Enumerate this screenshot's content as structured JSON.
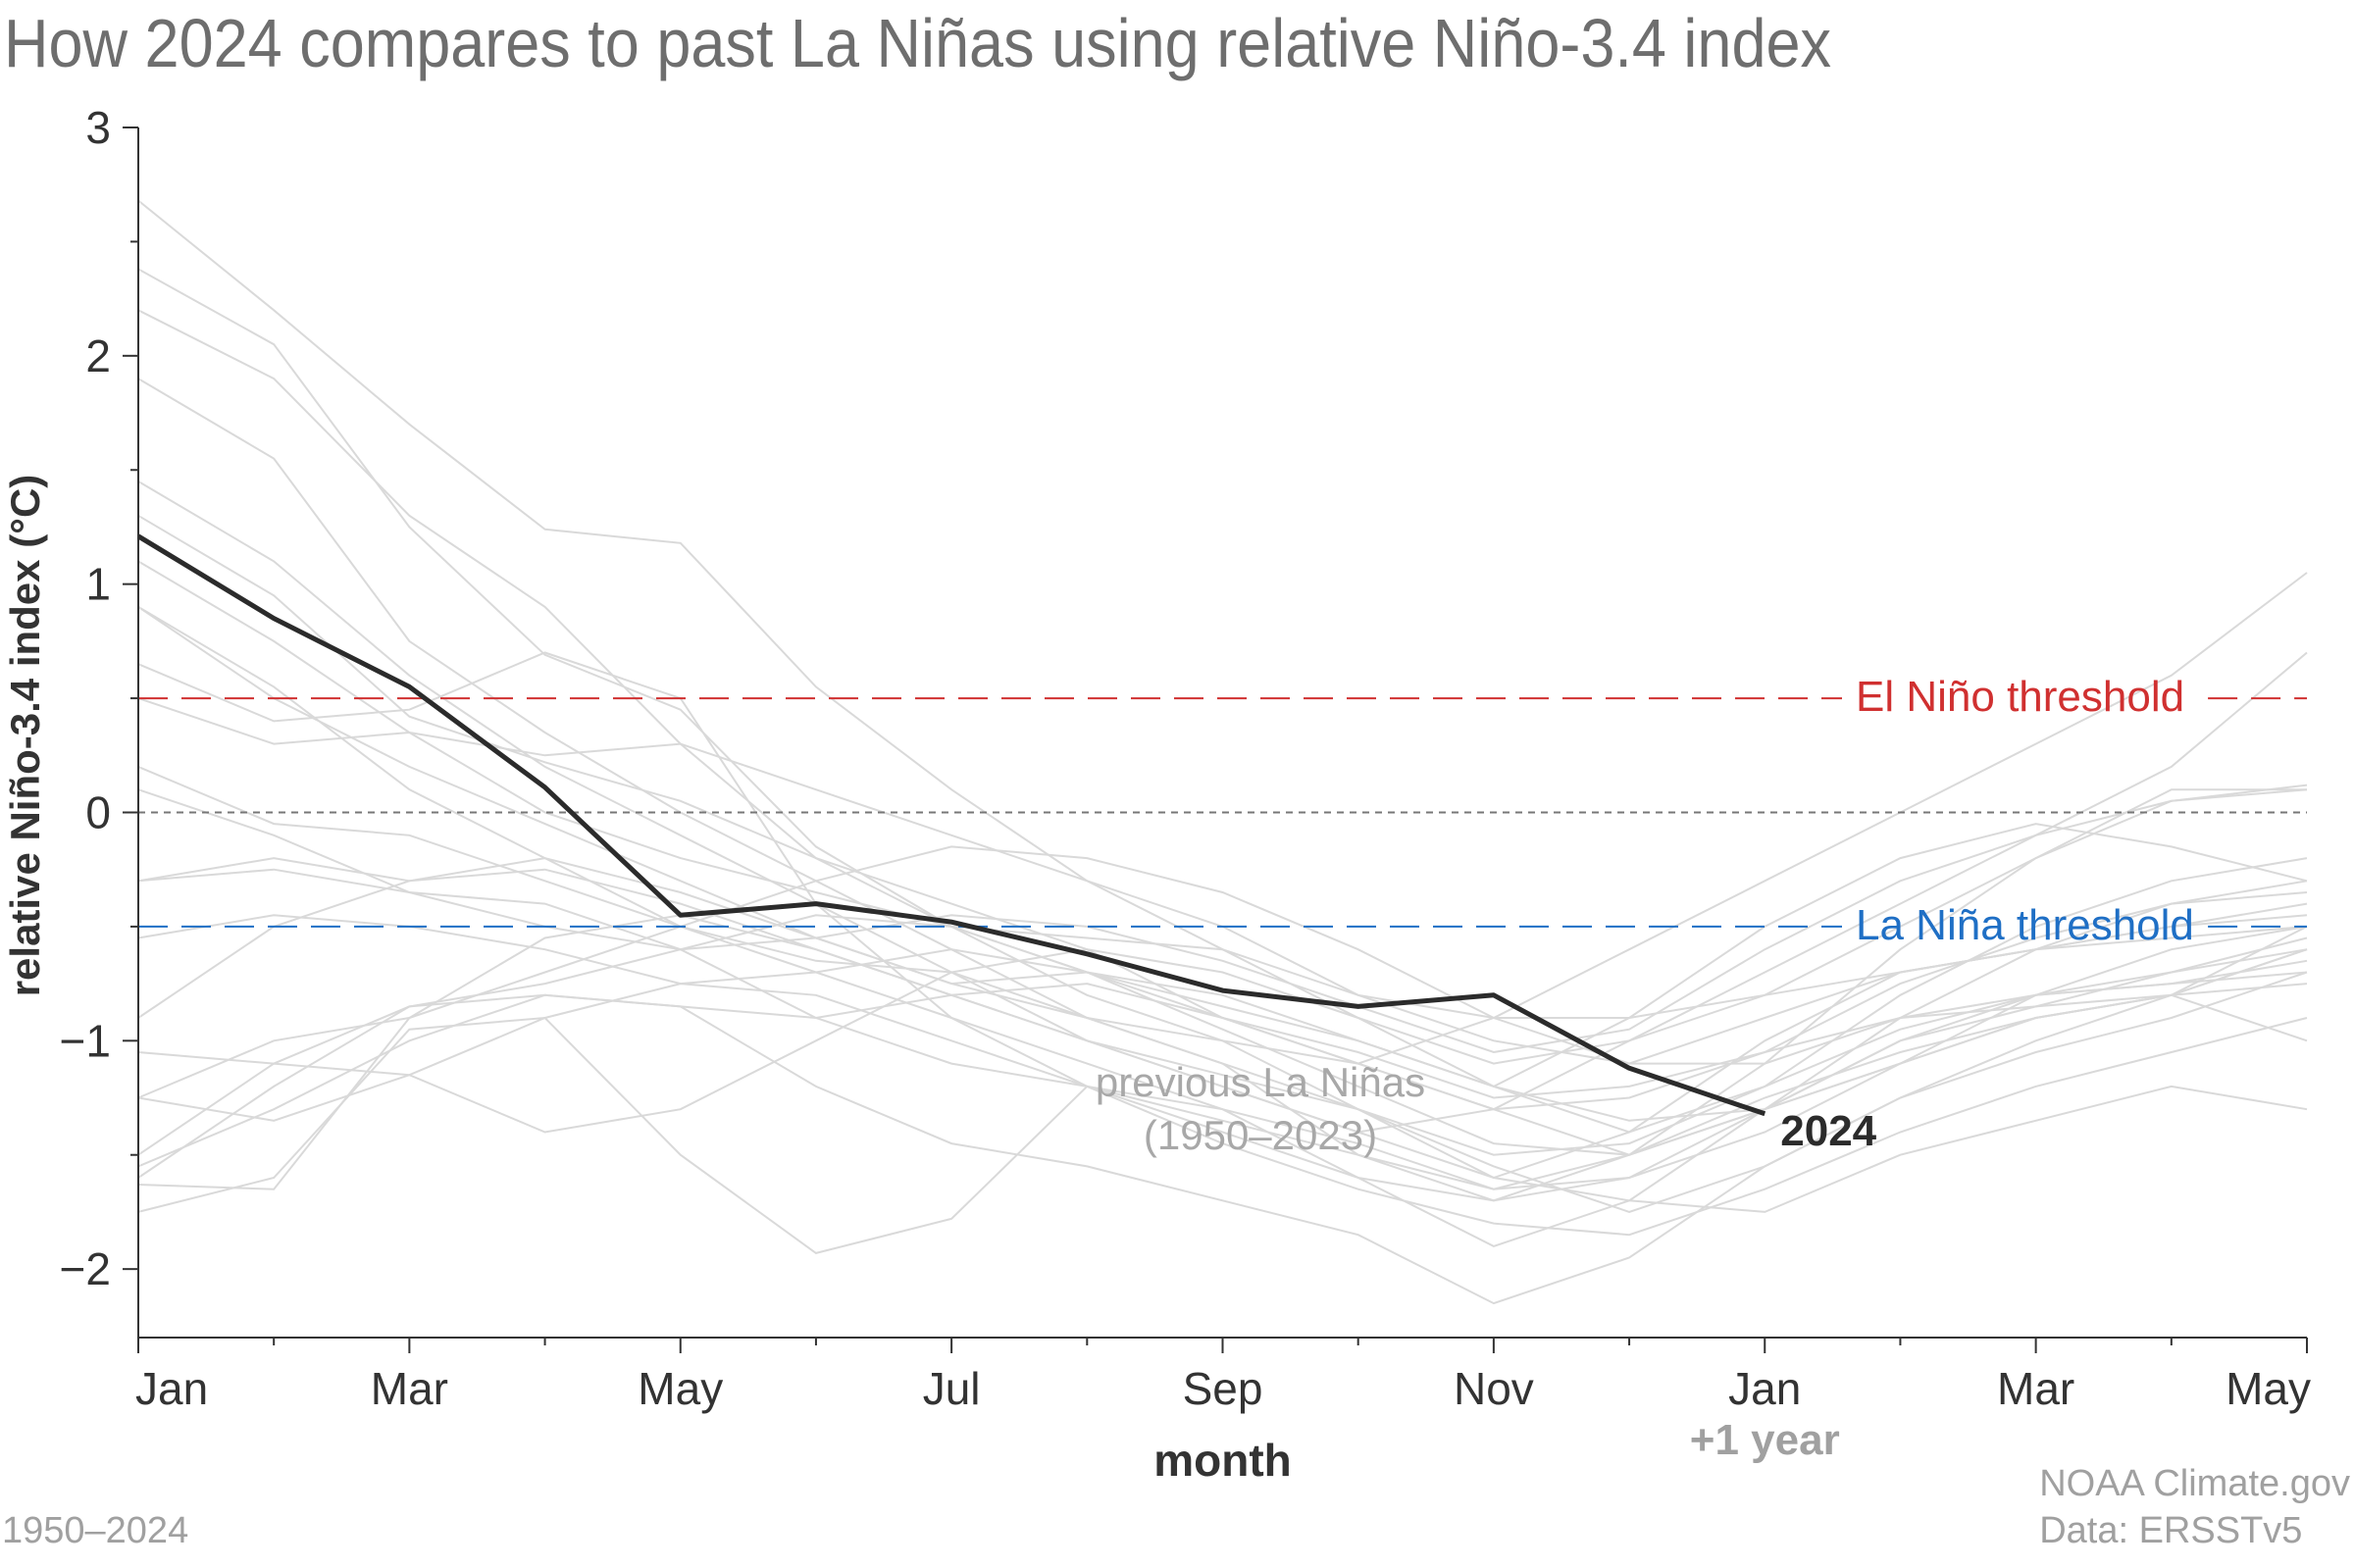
{
  "chart_data": {
    "type": "line",
    "title": "How 2024 compares to past La Niñas using relative Niño-3.4 index",
    "xlabel": "month",
    "ylabel": "relative Niño-3.4 index (°C)",
    "ylim": [
      -2.3,
      3
    ],
    "yticks": [
      "3",
      "2",
      "1",
      "0",
      "−1",
      "−2"
    ],
    "ytick_values": [
      3,
      2,
      1,
      0,
      -1,
      -2
    ],
    "x_tick_labels": [
      "Jan",
      "Mar",
      "May",
      "Jul",
      "Sep",
      "Nov",
      "Jan",
      "Mar",
      "May"
    ],
    "x_tick_positions": [
      1,
      3,
      5,
      7,
      9,
      11,
      13,
      15,
      17
    ],
    "x_sublabel": "+1 year",
    "grid": false,
    "thresholds": [
      {
        "label": "El Niño threshold",
        "value": 0.5,
        "color": "#d03030"
      },
      {
        "label": "",
        "value": 0,
        "color": "#777777"
      },
      {
        "label": "La Niña threshold",
        "value": -0.5,
        "color": "#1f6fc5"
      }
    ],
    "highlight": {
      "name": "2024",
      "color": "#2b2b2b",
      "x": [
        1,
        2,
        3,
        4,
        5,
        6,
        7,
        8,
        9,
        10,
        11,
        12,
        13
      ],
      "y": [
        1.21,
        0.85,
        0.55,
        0.11,
        -0.45,
        -0.4,
        -0.48,
        -0.62,
        -0.78,
        -0.85,
        -0.8,
        -1.12,
        -1.32
      ]
    },
    "background_label": [
      "previous La Niñas",
      "(1950–2023)"
    ],
    "background_color": "#d9d9d9",
    "background_series": [
      {
        "x": [
          1,
          2,
          3,
          4,
          5,
          6,
          7,
          8,
          9,
          10,
          11,
          12,
          13,
          14,
          15,
          16,
          17
        ],
        "y": [
          2.68,
          2.2,
          1.7,
          1.24,
          1.18,
          0.55,
          0.1,
          -0.3,
          -0.6,
          -0.9,
          -1.2,
          -1.4,
          -1.2,
          -0.8,
          -0.5,
          -0.3,
          -0.2
        ]
      },
      {
        "x": [
          1,
          2,
          3,
          4,
          5,
          6,
          7,
          8,
          9,
          10,
          11,
          12,
          13,
          14,
          15,
          16,
          17
        ],
        "y": [
          2.38,
          2.05,
          1.25,
          0.69,
          0.45,
          -0.15,
          -0.5,
          -0.8,
          -1.0,
          -1.3,
          -1.6,
          -1.4,
          -1.0,
          -0.7,
          -0.6,
          -0.5,
          -0.4
        ]
      },
      {
        "x": [
          1,
          2,
          3,
          4,
          5,
          6,
          7,
          8,
          9,
          10,
          11,
          12,
          13,
          14,
          15,
          16,
          17
        ],
        "y": [
          2.2,
          1.9,
          1.3,
          0.9,
          0.3,
          -0.2,
          -0.5,
          -0.7,
          -0.9,
          -1.1,
          -1.3,
          -1.5,
          -1.3,
          -1.1,
          -0.9,
          -0.8,
          -0.6
        ]
      },
      {
        "x": [
          1,
          2,
          3,
          4,
          5,
          6,
          7,
          8,
          9,
          10,
          11,
          12,
          13,
          14,
          15,
          16,
          17
        ],
        "y": [
          1.9,
          1.55,
          0.75,
          0.35,
          0.0,
          -0.3,
          -0.6,
          -0.9,
          -1.1,
          -1.5,
          -1.7,
          -1.5,
          -1.1,
          -0.6,
          -0.2,
          0.05,
          0.12
        ]
      },
      {
        "x": [
          1,
          2,
          3,
          4,
          5,
          6,
          7,
          8,
          9,
          10,
          11,
          12,
          13,
          14,
          15,
          16,
          17
        ],
        "y": [
          1.45,
          1.1,
          0.6,
          0.2,
          -0.1,
          -0.4,
          -0.7,
          -1.0,
          -1.2,
          -1.4,
          -1.3,
          -1.0,
          -0.7,
          -0.4,
          -0.1,
          0.2,
          0.7
        ]
      },
      {
        "x": [
          1,
          2,
          3,
          4,
          5,
          6,
          7,
          8,
          9,
          10,
          11,
          12,
          13,
          14,
          15,
          16,
          17
        ],
        "y": [
          1.3,
          0.95,
          0.42,
          0.22,
          0.05,
          -0.2,
          -0.4,
          -0.6,
          -0.9,
          -1.1,
          -0.9,
          -0.6,
          -0.3,
          0.0,
          0.3,
          0.6,
          1.05
        ]
      },
      {
        "x": [
          1,
          2,
          3,
          4,
          5,
          6,
          7,
          8,
          9,
          10,
          11,
          12,
          13,
          14,
          15,
          16,
          17
        ],
        "y": [
          1.1,
          0.75,
          0.35,
          0.0,
          -0.2,
          -0.35,
          -0.5,
          -0.55,
          -0.6,
          -0.8,
          -0.9,
          -0.9,
          -0.8,
          -0.5,
          -0.2,
          0.1,
          0.1
        ]
      },
      {
        "x": [
          1,
          2,
          3,
          4,
          5,
          6,
          7,
          8,
          9,
          10,
          11,
          12,
          13,
          14,
          15,
          16,
          17
        ],
        "y": [
          0.9,
          0.55,
          0.1,
          -0.2,
          -0.5,
          -0.7,
          -0.9,
          -1.1,
          -1.3,
          -1.6,
          -1.9,
          -1.7,
          -1.3,
          -0.9,
          -0.6,
          -0.4,
          -0.3
        ]
      },
      {
        "x": [
          1,
          2,
          3,
          4,
          5,
          6,
          7,
          8,
          9,
          10,
          11,
          12,
          13,
          14,
          15,
          16,
          17
        ],
        "y": [
          0.65,
          0.4,
          0.45,
          0.7,
          0.5,
          -0.4,
          -0.9,
          -1.2,
          -1.35,
          -1.5,
          -1.65,
          -1.6,
          -1.4,
          -1.1,
          -0.8,
          -0.6,
          -0.5
        ]
      },
      {
        "x": [
          1,
          2,
          3,
          4,
          5,
          6,
          7,
          8,
          9,
          10,
          11,
          12,
          13,
          14,
          15,
          16,
          17
        ],
        "y": [
          0.5,
          0.3,
          0.35,
          0.25,
          0.3,
          0.1,
          -0.1,
          -0.3,
          -0.5,
          -0.8,
          -1.0,
          -1.1,
          -0.9,
          -0.7,
          -0.6,
          -0.5,
          -0.45
        ]
      },
      {
        "x": [
          1,
          2,
          3,
          4,
          5,
          6,
          7,
          8,
          9,
          10,
          11,
          12,
          13,
          14,
          15,
          16,
          17
        ],
        "y": [
          0.2,
          -0.05,
          -0.1,
          -0.3,
          -0.5,
          -0.65,
          -0.7,
          -0.6,
          -0.7,
          -0.9,
          -1.1,
          -1.0,
          -0.8,
          -0.7,
          -0.6,
          -0.55,
          -0.5
        ]
      },
      {
        "x": [
          1,
          2,
          3,
          4,
          5,
          6,
          7,
          8,
          9,
          10,
          11,
          12,
          13,
          14,
          15,
          16,
          17
        ],
        "y": [
          0.1,
          -0.1,
          -0.35,
          -0.5,
          -0.6,
          -0.55,
          -0.45,
          -0.5,
          -0.65,
          -0.85,
          -1.05,
          -0.95,
          -0.6,
          -0.3,
          -0.1,
          0.05,
          0.1
        ]
      },
      {
        "x": [
          1,
          2,
          3,
          4,
          5,
          6,
          7,
          8,
          9,
          10,
          11,
          12,
          13,
          14,
          15,
          16,
          17
        ],
        "y": [
          -0.3,
          -0.25,
          -0.35,
          -0.4,
          -0.6,
          -0.9,
          -1.1,
          -1.2,
          -1.4,
          -1.6,
          -1.7,
          -1.6,
          -1.3,
          -1.0,
          -0.8,
          -0.7,
          -0.6
        ]
      },
      {
        "x": [
          1,
          2,
          3,
          4,
          5,
          6,
          7,
          8,
          9,
          10,
          11,
          12,
          13,
          14,
          15,
          16,
          17
        ],
        "y": [
          -0.55,
          -0.45,
          -0.5,
          -0.6,
          -0.75,
          -0.7,
          -0.6,
          -0.7,
          -0.85,
          -1.0,
          -1.2,
          -1.35,
          -1.3,
          -1.1,
          -0.9,
          -0.8,
          -0.75
        ]
      },
      {
        "x": [
          1,
          2,
          3,
          4,
          5,
          6,
          7,
          8,
          9,
          10,
          11,
          12,
          13,
          14,
          15,
          16,
          17
        ],
        "y": [
          -0.9,
          -0.5,
          -0.3,
          -0.2,
          -0.35,
          -0.55,
          -0.75,
          -0.7,
          -0.8,
          -1.0,
          -1.2,
          -0.9,
          -0.5,
          -0.2,
          -0.05,
          -0.15,
          -0.3
        ]
      },
      {
        "x": [
          1,
          2,
          3,
          4,
          5,
          6,
          7,
          8,
          9,
          10,
          11,
          12,
          13,
          14,
          15,
          16,
          17
        ],
        "y": [
          -1.05,
          -1.1,
          -0.85,
          -0.8,
          -0.85,
          -0.9,
          -0.8,
          -0.75,
          -0.9,
          -1.05,
          -1.25,
          -1.2,
          -1.05,
          -0.9,
          -0.85,
          -0.8,
          -1.0
        ]
      },
      {
        "x": [
          1,
          2,
          3,
          4,
          5,
          6,
          7,
          8,
          9,
          10,
          11,
          12,
          13,
          14,
          15,
          16,
          17
        ],
        "y": [
          -1.25,
          -1.0,
          -0.9,
          -0.7,
          -0.5,
          -0.3,
          -0.15,
          -0.2,
          -0.35,
          -0.6,
          -0.9,
          -1.1,
          -1.1,
          -0.9,
          -0.8,
          -0.75,
          -0.7
        ]
      },
      {
        "x": [
          1,
          2,
          3,
          4,
          5,
          6,
          7,
          8,
          9,
          10,
          11,
          12,
          13,
          14,
          15,
          16,
          17
        ],
        "y": [
          -1.5,
          -1.1,
          -1.15,
          -1.4,
          -1.3,
          -1.0,
          -0.7,
          -0.9,
          -1.1,
          -1.3,
          -1.5,
          -1.45,
          -1.2,
          -0.95,
          -0.8,
          -0.75,
          -0.65
        ]
      },
      {
        "x": [
          1,
          2,
          3,
          4,
          5,
          6,
          7,
          8,
          9,
          10,
          11,
          12,
          13,
          14,
          15,
          16,
          17
        ],
        "y": [
          -1.6,
          -1.2,
          -0.85,
          -0.75,
          -0.6,
          -0.45,
          -0.5,
          -0.7,
          -0.95,
          -1.2,
          -1.45,
          -1.5,
          -1.3,
          -1.0,
          -0.85,
          -0.7,
          -0.55
        ]
      },
      {
        "x": [
          1,
          2,
          3,
          4,
          5,
          6,
          7,
          8,
          9,
          10,
          11,
          12,
          13,
          14,
          15,
          16,
          17
        ],
        "y": [
          -1.63,
          -1.65,
          -0.9,
          -0.55,
          -0.45,
          -0.6,
          -0.8,
          -1.0,
          -1.15,
          -1.3,
          -1.55,
          -1.75,
          -1.55,
          -1.25,
          -1.05,
          -0.9,
          -0.7
        ]
      },
      {
        "x": [
          1,
          2,
          3,
          4,
          5,
          6,
          7,
          8,
          9,
          10,
          11,
          12,
          13,
          14,
          15,
          16,
          17
        ],
        "y": [
          -1.75,
          -1.6,
          -0.95,
          -0.9,
          -1.5,
          -1.93,
          -1.78,
          -1.2,
          -1.3,
          -1.45,
          -1.65,
          -1.5,
          -1.25,
          -1.05,
          -0.9,
          -0.8,
          -0.6
        ]
      },
      {
        "x": [
          1,
          2,
          3,
          4,
          5,
          6,
          7,
          8,
          9,
          10,
          11,
          12,
          13,
          14,
          15,
          16,
          17
        ],
        "y": [
          -1.55,
          -1.3,
          -1.0,
          -0.8,
          -0.85,
          -1.2,
          -1.45,
          -1.55,
          -1.7,
          -1.85,
          -2.15,
          -1.95,
          -1.55,
          -1.25,
          -1.0,
          -0.8,
          -0.5
        ]
      },
      {
        "x": [
          1,
          2,
          3,
          4,
          5,
          6,
          7,
          8,
          9,
          10,
          11,
          12,
          13,
          14,
          15,
          16,
          17
        ],
        "y": [
          -1.25,
          -1.35,
          -1.15,
          -0.9,
          -0.75,
          -0.8,
          -1.0,
          -1.2,
          -1.45,
          -1.65,
          -1.8,
          -1.85,
          -1.65,
          -1.4,
          -1.2,
          -1.05,
          -0.9
        ]
      },
      {
        "x": [
          1,
          2,
          3,
          4,
          5,
          6,
          7,
          8,
          9,
          10,
          11,
          12,
          13,
          14,
          15,
          16,
          17
        ],
        "y": [
          0.9,
          0.5,
          0.2,
          -0.05,
          -0.3,
          -0.55,
          -0.75,
          -0.9,
          -1.0,
          -1.1,
          -1.3,
          -1.25,
          -1.05,
          -0.75,
          -0.55,
          -0.4,
          -0.35
        ]
      },
      {
        "x": [
          1,
          2,
          3,
          4,
          5,
          6,
          7,
          8,
          9,
          10,
          11,
          12,
          13,
          14,
          15,
          16,
          17
        ],
        "y": [
          -0.3,
          -0.2,
          -0.3,
          -0.25,
          -0.4,
          -0.6,
          -0.8,
          -1.0,
          -1.2,
          -1.4,
          -1.6,
          -1.7,
          -1.75,
          -1.5,
          -1.35,
          -1.2,
          -1.3
        ]
      }
    ]
  },
  "footer": {
    "left": "1950–2024",
    "credit_line1": "NOAA Climate.gov",
    "credit_line2": "Data: ERSSTv5"
  }
}
